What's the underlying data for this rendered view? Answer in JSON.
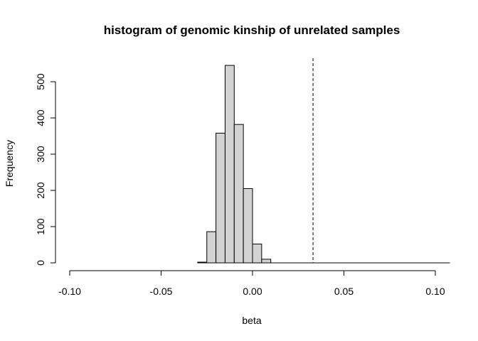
{
  "chart_data": {
    "type": "bar",
    "title": "histogram of genomic kinship of unrelated samples",
    "xlabel": "beta",
    "ylabel": "Frequency",
    "xlim": [
      -0.105,
      0.108
    ],
    "ylim": [
      0,
      560
    ],
    "x_ticks": [
      -0.1,
      -0.05,
      0.0,
      0.05,
      0.1
    ],
    "x_tick_labels": [
      "-0.10",
      "-0.05",
      "0.00",
      "0.05",
      "0.10"
    ],
    "y_ticks": [
      0,
      100,
      200,
      300,
      400,
      500
    ],
    "y_tick_labels": [
      "0",
      "100",
      "200",
      "300",
      "400",
      "500"
    ],
    "bin_width": 0.005,
    "bins": [
      {
        "x0": -0.03,
        "x1": -0.025,
        "count": 2
      },
      {
        "x0": -0.025,
        "x1": -0.02,
        "count": 86
      },
      {
        "x0": -0.02,
        "x1": -0.015,
        "count": 358
      },
      {
        "x0": -0.015,
        "x1": -0.01,
        "count": 545
      },
      {
        "x0": -0.01,
        "x1": -0.005,
        "count": 382
      },
      {
        "x0": -0.005,
        "x1": 0.0,
        "count": 205
      },
      {
        "x0": 0.0,
        "x1": 0.005,
        "count": 52
      },
      {
        "x0": 0.005,
        "x1": 0.01,
        "count": 10
      }
    ],
    "zero_line_range": [
      -0.03,
      0.108
    ],
    "threshold_line": {
      "x": 0.0331,
      "style": "dashed"
    },
    "bar_fill": "#d3d3d3",
    "bar_stroke": "#000000",
    "grid": false
  }
}
